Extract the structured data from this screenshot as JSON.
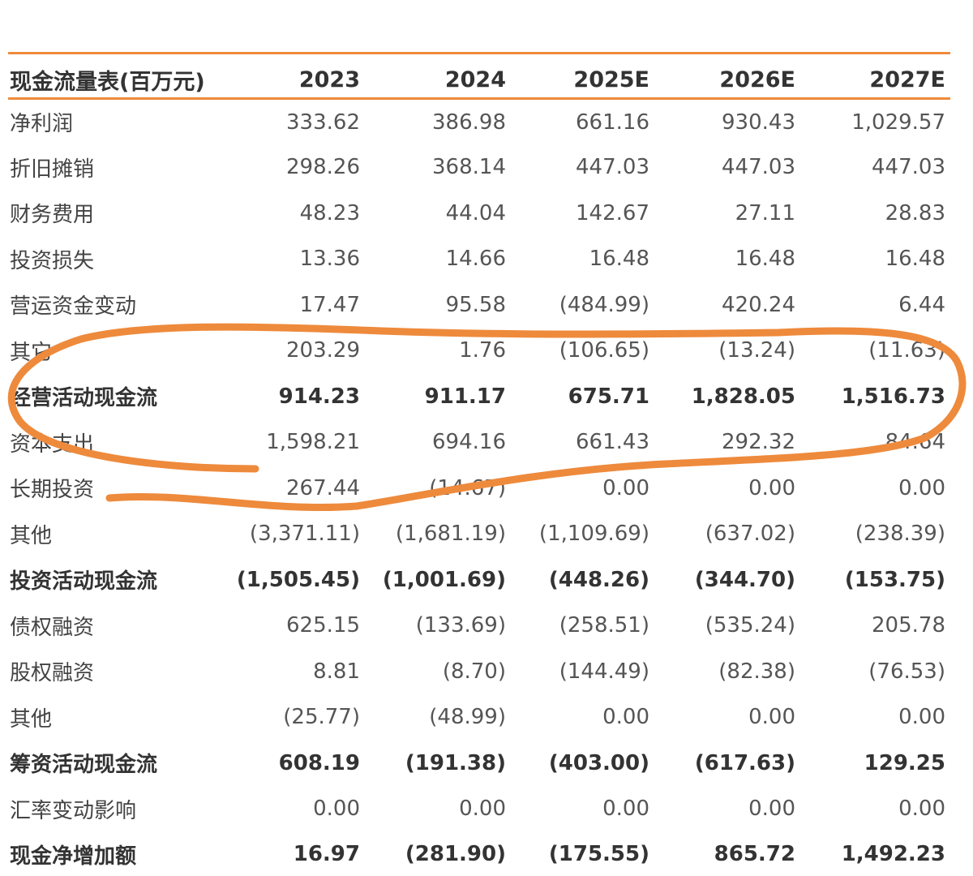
{
  "table": {
    "title": "现金流量表(百万元)",
    "years": [
      "2023",
      "2024",
      "2025E",
      "2026E",
      "2027E"
    ],
    "rows": [
      {
        "label": "净利润",
        "values": [
          "333.62",
          "386.98",
          "661.16",
          "930.43",
          "1,029.57"
        ],
        "bold": false
      },
      {
        "label": "折旧摊销",
        "values": [
          "298.26",
          "368.14",
          "447.03",
          "447.03",
          "447.03"
        ],
        "bold": false
      },
      {
        "label": "财务费用",
        "values": [
          "48.23",
          "44.04",
          "142.67",
          "27.11",
          "28.83"
        ],
        "bold": false
      },
      {
        "label": "投资损失",
        "values": [
          "13.36",
          "14.66",
          "16.48",
          "16.48",
          "16.48"
        ],
        "bold": false
      },
      {
        "label": "营运资金变动",
        "values": [
          "17.47",
          "95.58",
          "(484.99)",
          "420.24",
          "6.44"
        ],
        "bold": false
      },
      {
        "label": "其它",
        "values": [
          "203.29",
          "1.76",
          "(106.65)",
          "(13.24)",
          "(11.63)"
        ],
        "bold": false
      },
      {
        "label": "经营活动现金流",
        "values": [
          "914.23",
          "911.17",
          "675.71",
          "1,828.05",
          "1,516.73"
        ],
        "bold": true
      },
      {
        "label": "资本支出",
        "values": [
          "1,598.21",
          "694.16",
          "661.43",
          "292.32",
          "84.64"
        ],
        "bold": false
      },
      {
        "label": "长期投资",
        "values": [
          "267.44",
          "(14.67)",
          "0.00",
          "0.00",
          "0.00"
        ],
        "bold": false
      },
      {
        "label": "其他",
        "values": [
          "(3,371.11)",
          "(1,681.19)",
          "(1,109.69)",
          "(637.02)",
          "(238.39)"
        ],
        "bold": false
      },
      {
        "label": "投资活动现金流",
        "values": [
          "(1,505.45)",
          "(1,001.69)",
          "(448.26)",
          "(344.70)",
          "(153.75)"
        ],
        "bold": true
      },
      {
        "label": "债权融资",
        "values": [
          "625.15",
          "(133.69)",
          "(258.51)",
          "(535.24)",
          "205.78"
        ],
        "bold": false
      },
      {
        "label": "股权融资",
        "values": [
          "8.81",
          "(8.70)",
          "(144.49)",
          "(82.38)",
          "(76.53)"
        ],
        "bold": false
      },
      {
        "label": "其他",
        "values": [
          "(25.77)",
          "(48.99)",
          "0.00",
          "0.00",
          "0.00"
        ],
        "bold": false
      },
      {
        "label": "筹资活动现金流",
        "values": [
          "608.19",
          "(191.38)",
          "(403.00)",
          "(617.63)",
          "129.25"
        ],
        "bold": true
      },
      {
        "label": "汇率变动影响",
        "values": [
          "0.00",
          "0.00",
          "0.00",
          "0.00",
          "0.00"
        ],
        "bold": false
      },
      {
        "label": "现金净增加额",
        "values": [
          "16.97",
          "(281.90)",
          "(175.55)",
          "865.72",
          "1,492.23"
        ],
        "bold": true
      }
    ]
  },
  "colors": {
    "rule": "#ee8a3c",
    "annotation_stroke": "#ee8a3c"
  },
  "annotation": {
    "type": "hand-drawn-ellipse"
  }
}
